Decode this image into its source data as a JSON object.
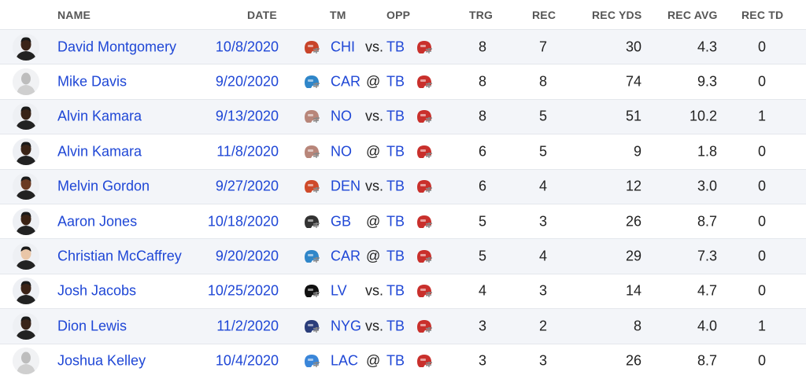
{
  "headers": {
    "name": "NAME",
    "date": "DATE",
    "tm": "TM",
    "opp": "OPP",
    "trg": "TRG",
    "rec": "REC",
    "rec_yds": "REC YDS",
    "rec_avg": "REC AVG",
    "rec_td": "REC TD"
  },
  "colors": {
    "link": "#1f47d6",
    "row_alt": "#f3f5f9"
  },
  "rows": [
    {
      "player": "David Montgomery",
      "date": "10/8/2020",
      "tm": "CHI",
      "loc": "vs.",
      "opp": "TB",
      "trg": "8",
      "rec": "7",
      "yds": "30",
      "avg": "4.3",
      "td": "0",
      "tm_color": "#c8442a",
      "skin": "#3b2418",
      "blank": false
    },
    {
      "player": "Mike Davis",
      "date": "9/20/2020",
      "tm": "CAR",
      "loc": "@",
      "opp": "TB",
      "trg": "8",
      "rec": "8",
      "yds": "74",
      "avg": "9.3",
      "td": "0",
      "tm_color": "#2f86c9",
      "skin": "#c9c9c9",
      "blank": true
    },
    {
      "player": "Alvin Kamara",
      "date": "9/13/2020",
      "tm": "NO",
      "loc": "vs.",
      "opp": "TB",
      "trg": "8",
      "rec": "5",
      "yds": "51",
      "avg": "10.2",
      "td": "1",
      "tm_color": "#b8867a",
      "skin": "#3a2417",
      "blank": false
    },
    {
      "player": "Alvin Kamara",
      "date": "11/8/2020",
      "tm": "NO",
      "loc": "@",
      "opp": "TB",
      "trg": "6",
      "rec": "5",
      "yds": "9",
      "avg": "1.8",
      "td": "0",
      "tm_color": "#b8867a",
      "skin": "#3a2417",
      "blank": false
    },
    {
      "player": "Melvin Gordon",
      "date": "9/27/2020",
      "tm": "DEN",
      "loc": "vs.",
      "opp": "TB",
      "trg": "6",
      "rec": "4",
      "yds": "12",
      "avg": "3.0",
      "td": "0",
      "tm_color": "#cf4a2a",
      "skin": "#6b3a22",
      "blank": false
    },
    {
      "player": "Aaron Jones",
      "date": "10/18/2020",
      "tm": "GB",
      "loc": "@",
      "opp": "TB",
      "trg": "5",
      "rec": "3",
      "yds": "26",
      "avg": "8.7",
      "td": "0",
      "tm_color": "#333333",
      "skin": "#3a2214",
      "blank": false
    },
    {
      "player": "Christian McCaffrey",
      "date": "9/20/2020",
      "tm": "CAR",
      "loc": "@",
      "opp": "TB",
      "trg": "5",
      "rec": "4",
      "yds": "29",
      "avg": "7.3",
      "td": "0",
      "tm_color": "#2f86c9",
      "skin": "#e9c6a8",
      "blank": false
    },
    {
      "player": "Josh Jacobs",
      "date": "10/25/2020",
      "tm": "LV",
      "loc": "vs.",
      "opp": "TB",
      "trg": "4",
      "rec": "3",
      "yds": "14",
      "avg": "4.7",
      "td": "0",
      "tm_color": "#111111",
      "skin": "#3b2317",
      "blank": false
    },
    {
      "player": "Dion Lewis",
      "date": "11/2/2020",
      "tm": "NYG",
      "loc": "vs.",
      "opp": "TB",
      "trg": "3",
      "rec": "2",
      "yds": "8",
      "avg": "4.0",
      "td": "1",
      "tm_color": "#2a3d7a",
      "skin": "#3a2419",
      "blank": false
    },
    {
      "player": "Joshua Kelley",
      "date": "10/4/2020",
      "tm": "LAC",
      "loc": "@",
      "opp": "TB",
      "trg": "3",
      "rec": "3",
      "yds": "26",
      "avg": "8.7",
      "td": "0",
      "tm_color": "#3a86d9",
      "skin": "#c9c9c9",
      "blank": true
    }
  ]
}
